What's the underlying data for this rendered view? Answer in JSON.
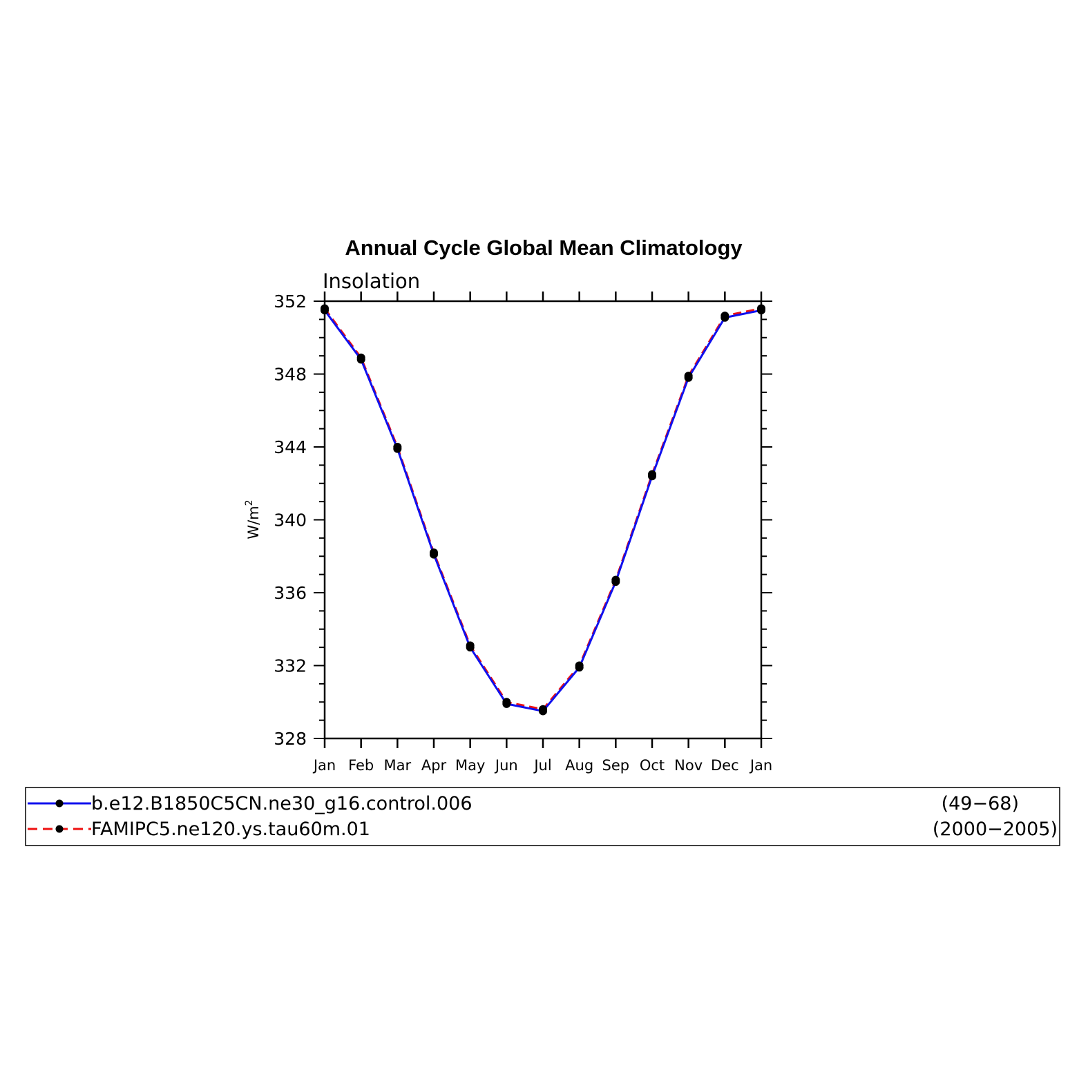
{
  "chart_data": {
    "type": "line",
    "title": "Annual Cycle Global Mean Climatology",
    "subtitle": "Insolation",
    "xlabel": "",
    "ylabel_base": "W/m",
    "ylabel_sup": "2",
    "categories": [
      "Jan",
      "Feb",
      "Mar",
      "Apr",
      "May",
      "Jun",
      "Jul",
      "Aug",
      "Sep",
      "Oct",
      "Nov",
      "Dec",
      "Jan"
    ],
    "ylim": [
      328,
      352
    ],
    "yticks": [
      "352",
      "348",
      "344",
      "340",
      "336",
      "332",
      "328"
    ],
    "grid": false,
    "legend_position": "bottom",
    "series": [
      {
        "name": "b.e12.B1850C5CN.ne30_g16.control.006",
        "years": "(49−68)",
        "color": "#1010ee",
        "dash": "solid",
        "values": [
          351.5,
          348.8,
          343.9,
          338.1,
          333.0,
          329.9,
          329.5,
          331.9,
          336.6,
          342.4,
          347.8,
          351.1,
          351.5
        ]
      },
      {
        "name": "FAMIPC5.ne120.ys.tau60m.01",
        "years": "(2000−2005)",
        "color": "#ee1010",
        "dash": "dashed",
        "values": [
          351.6,
          348.9,
          344.0,
          338.2,
          333.1,
          330.0,
          329.6,
          332.0,
          336.7,
          342.5,
          347.9,
          351.2,
          351.6
        ]
      }
    ]
  }
}
